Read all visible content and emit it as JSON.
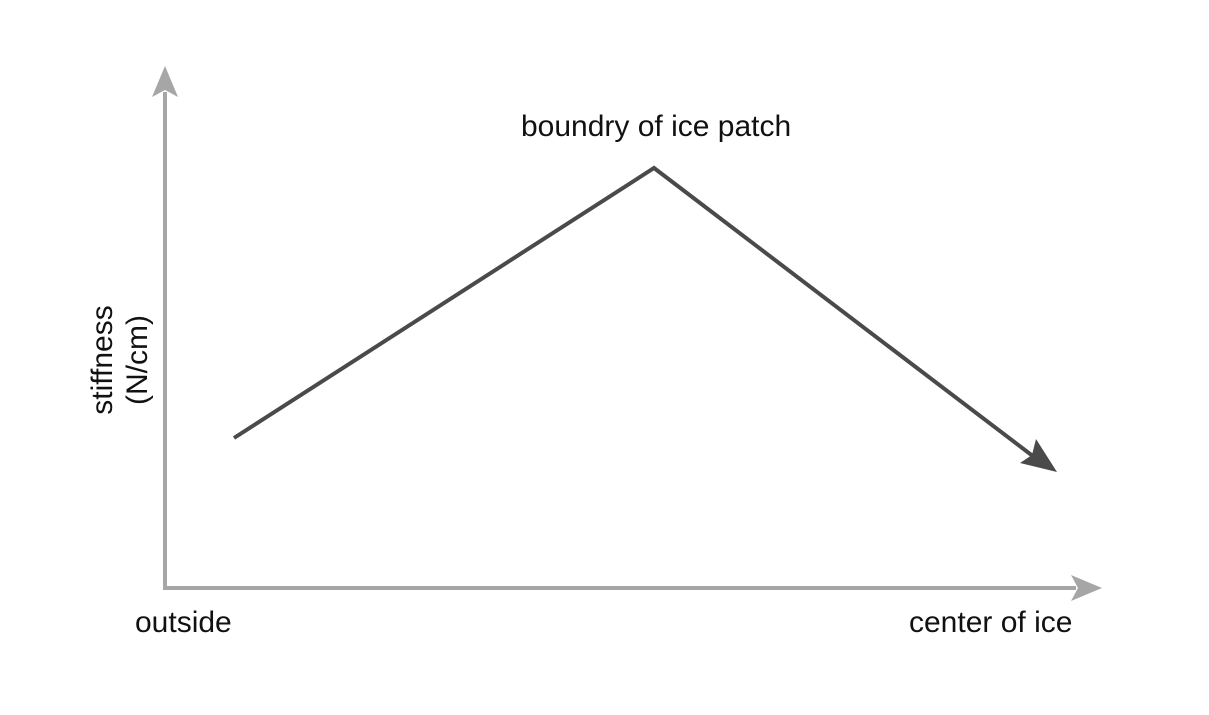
{
  "diagram": {
    "peak_label": "boundry of ice patch",
    "x_axis": {
      "left_label": "outside",
      "right_label": "center of ice"
    },
    "y_axis": {
      "label_line1": "stiffness",
      "label_line2": "(N/cm)"
    },
    "colors": {
      "axis": "#a6a6a6",
      "curve": "#4a4a4a",
      "text": "#111111"
    }
  }
}
